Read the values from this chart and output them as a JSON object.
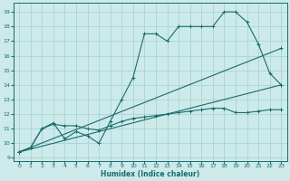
{
  "xlabel": "Humidex (Indice chaleur)",
  "background_color": "#cceaea",
  "grid_color": "#aad4d4",
  "line_color": "#1a6b6b",
  "xlim": [
    -0.5,
    23.5
  ],
  "ylim": [
    8.8,
    19.6
  ],
  "xticks": [
    0,
    1,
    2,
    3,
    4,
    5,
    6,
    7,
    8,
    9,
    10,
    11,
    12,
    13,
    14,
    15,
    16,
    17,
    18,
    19,
    20,
    21,
    22,
    23
  ],
  "yticks": [
    9,
    10,
    11,
    12,
    13,
    14,
    15,
    16,
    17,
    18,
    19
  ],
  "series1_x": [
    0,
    1,
    2,
    3,
    4,
    5,
    6,
    7,
    8,
    9,
    10,
    11,
    12,
    13,
    14,
    15,
    16,
    17,
    18,
    19,
    20,
    21,
    22,
    23
  ],
  "series1_y": [
    9.4,
    9.7,
    11.0,
    11.4,
    10.3,
    10.8,
    10.5,
    10.0,
    11.5,
    13.0,
    14.5,
    17.5,
    17.5,
    17.0,
    18.0,
    18.0,
    18.0,
    18.0,
    19.0,
    19.0,
    18.3,
    16.8,
    14.8,
    14.0
  ],
  "series2_x": [
    0,
    1,
    2,
    3,
    4,
    5,
    6,
    7,
    8,
    9,
    10,
    11,
    12,
    13,
    14,
    15,
    16,
    17,
    18,
    19,
    20,
    21,
    22,
    23
  ],
  "series2_y": [
    9.4,
    9.7,
    11.0,
    11.3,
    11.2,
    11.2,
    11.0,
    10.9,
    11.2,
    11.5,
    11.7,
    11.8,
    11.9,
    12.0,
    12.1,
    12.2,
    12.3,
    12.4,
    12.4,
    12.1,
    12.1,
    12.2,
    12.3,
    12.3
  ],
  "series3_x": [
    0,
    23
  ],
  "series3_y": [
    9.4,
    16.5
  ],
  "series4_x": [
    0,
    23
  ],
  "series4_y": [
    9.4,
    14.0
  ]
}
